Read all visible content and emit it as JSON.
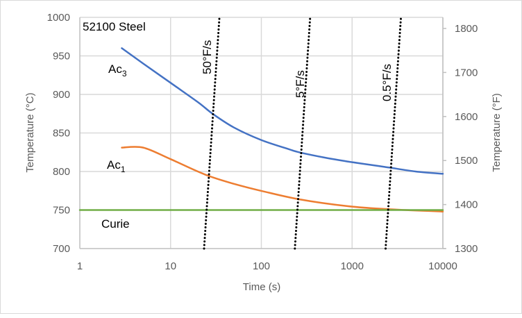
{
  "chart_data": {
    "type": "line",
    "title": "52100 Steel",
    "xlabel": "Time (s)",
    "ylabel": "Temperature (°C)",
    "y2label": "Temperature (°F)",
    "xscale": "log",
    "xlim": [
      1,
      10000
    ],
    "ylim": [
      700,
      1000
    ],
    "y2lim": [
      1300,
      1800
    ],
    "grid": true,
    "legend": "none",
    "xticks": [
      "1",
      "10",
      "100",
      "1000",
      "10000"
    ],
    "xtick_values": [
      1,
      10,
      100,
      1000,
      10000
    ],
    "yticks": [
      "700",
      "750",
      "800",
      "850",
      "900",
      "950",
      "1000"
    ],
    "ytick_values": [
      700,
      750,
      800,
      850,
      900,
      950,
      1000
    ],
    "y2ticks": [
      "1300",
      "1400",
      "1500",
      "1600",
      "1700",
      "1800"
    ],
    "y2tick_values": [
      1300,
      1400,
      1500,
      1600,
      1700,
      1800
    ],
    "series": [
      {
        "name": "Ac3",
        "label": "Ac",
        "label_sub": "3",
        "color": "#4472c4",
        "style": "solid",
        "x": [
          2.9,
          5,
          10,
          20,
          29,
          50,
          99,
          200,
          260,
          500,
          890,
          2000,
          2600,
          5000,
          10000
        ],
        "y": [
          960,
          940,
          915,
          890,
          875,
          857,
          841,
          829,
          825,
          818,
          813,
          807,
          805,
          800,
          797
        ]
      },
      {
        "name": "Ac1",
        "label": "Ac",
        "label_sub": "1",
        "color": "#ed7d31",
        "style": "solid",
        "x": [
          2.9,
          5,
          10,
          24,
          50,
          99,
          260,
          890,
          2600,
          10000
        ],
        "y": [
          831,
          831,
          816,
          796,
          784,
          775,
          764,
          755,
          751,
          748
        ]
      },
      {
        "name": "Curie",
        "label": "Curie",
        "color": "#70ad47",
        "style": "solid",
        "x": [
          1,
          10000
        ],
        "y": [
          750,
          750
        ]
      },
      {
        "name": "50°F/s",
        "label": "50°F/s",
        "color": "#000000",
        "style": "dotted",
        "x": [
          23.4,
          34.5
        ],
        "y": [
          700,
          1000
        ]
      },
      {
        "name": "5°F/s",
        "label": "5°F/s",
        "color": "#000000",
        "style": "dotted",
        "x": [
          234,
          345
        ],
        "y": [
          700,
          1000
        ]
      },
      {
        "name": "0.5°F/s",
        "label": "0.5°F/s",
        "color": "#000000",
        "style": "dotted",
        "x": [
          2340,
          3450
        ],
        "y": [
          700,
          1000
        ]
      }
    ]
  }
}
